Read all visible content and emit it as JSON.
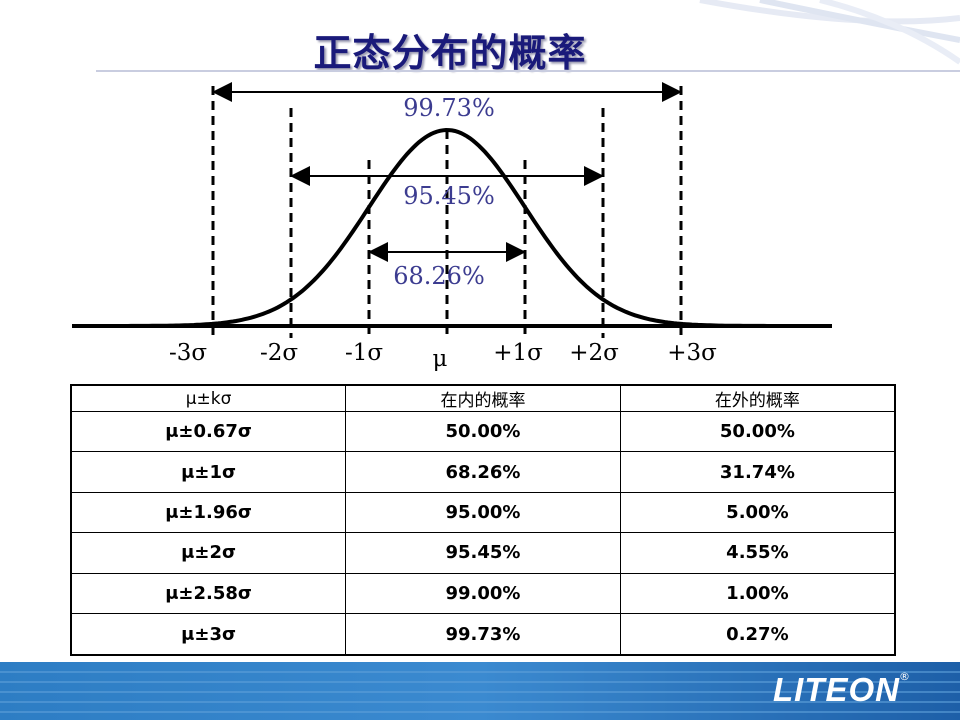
{
  "title": "正态分布的概率",
  "figure": {
    "intervals": [
      {
        "label": "99.73%",
        "k": 3
      },
      {
        "label": "95.45%",
        "k": 2
      },
      {
        "label": "68.26%",
        "k": 1
      }
    ],
    "axis_labels": [
      "-3σ",
      "-2σ",
      "-1σ",
      "μ",
      "+1σ",
      "+2σ",
      "+3σ"
    ]
  },
  "table": {
    "headers": [
      "μ±kσ",
      "在内的概率",
      "在外的概率"
    ],
    "rows": [
      [
        "μ±0.67σ",
        "50.00%",
        "50.00%"
      ],
      [
        "μ±1σ",
        "68.26%",
        "31.74%"
      ],
      [
        "μ±1.96σ",
        "95.00%",
        "5.00%"
      ],
      [
        "μ±2σ",
        "95.45%",
        "4.55%"
      ],
      [
        "μ±2.58σ",
        "99.00%",
        "1.00%"
      ],
      [
        "μ±3σ",
        "99.73%",
        "0.27%"
      ]
    ]
  },
  "logo": {
    "text": "LITEON",
    "registered": "®"
  },
  "colors": {
    "title": "#1a1a7a",
    "percent_labels": "#3c3c90",
    "band": "#1f6fb8"
  }
}
